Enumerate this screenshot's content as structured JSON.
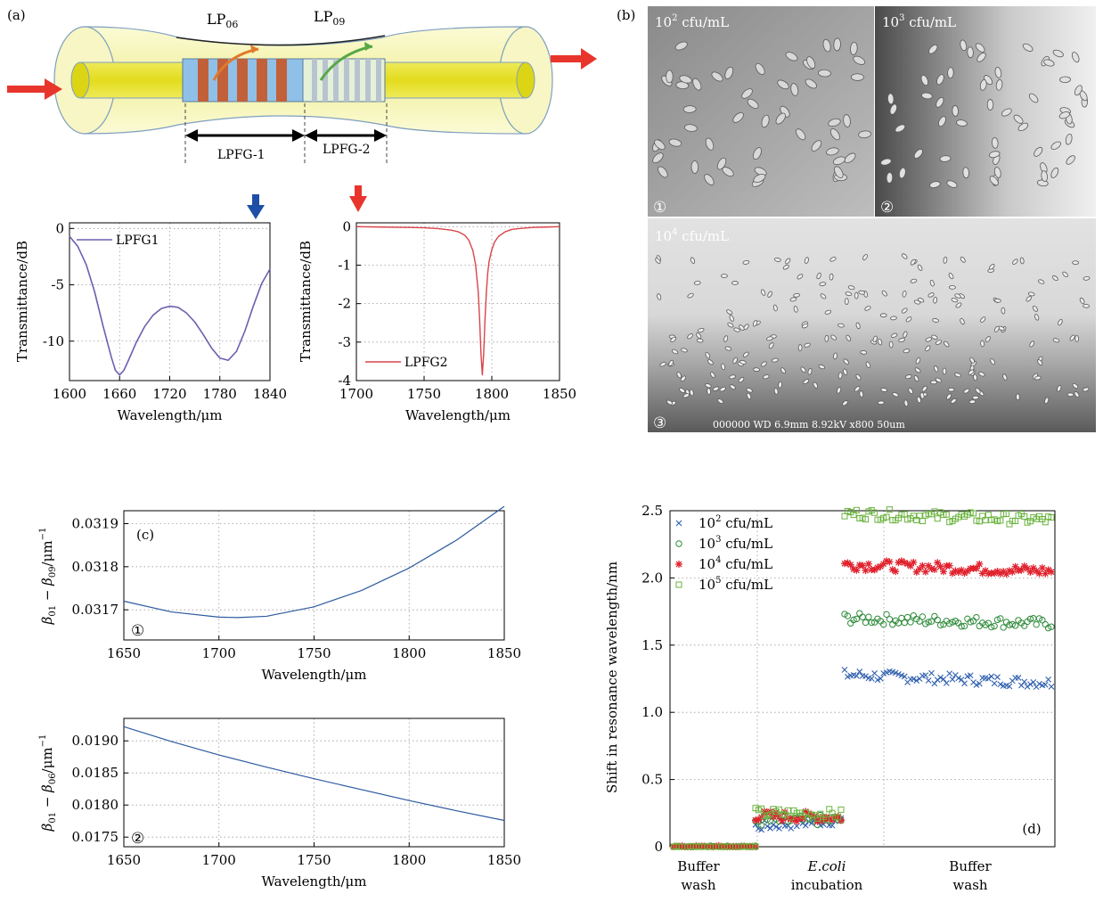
{
  "panels": {
    "a": {
      "label": "(a)",
      "mode1": "LP",
      "mode1_sub": "06",
      "mode2": "LP",
      "mode2_sub": "09",
      "grating1": "LPFG-1",
      "grating2": "LPFG-2",
      "colors": {
        "fiber": "#f4f3a6",
        "core": "#e9e020",
        "grating_blue": "#8fc0e8",
        "grating_brown": "#c2603a",
        "arrow_red": "#e8352c",
        "arrow_blue": "#1d4fa6"
      }
    },
    "b": {
      "label": "(b)",
      "images": [
        {
          "conc_base": "10",
          "conc_exp": "2",
          "unit": " cfu/mL",
          "marker": "①"
        },
        {
          "conc_base": "10",
          "conc_exp": "3",
          "unit": " cfu/mL",
          "marker": "②"
        },
        {
          "conc_base": "10",
          "conc_exp": "4",
          "unit": " cfu/mL",
          "marker": "③"
        }
      ],
      "sem_info": "000000 WD 6.9mm 8.92kV x800 50um"
    }
  },
  "chart_data": [
    {
      "id": "a-left",
      "type": "line",
      "xlabel": "Wavelength/μm",
      "ylabel": "Transmittance/dB",
      "xlim": [
        1600,
        1840
      ],
      "ylim": [
        -13.5,
        0.5
      ],
      "xticks": [
        1600,
        1660,
        1720,
        1780,
        1840
      ],
      "yticks": [
        0,
        -5,
        -10
      ],
      "grid": true,
      "legend": "top-left",
      "series": [
        {
          "name": "LPFG1",
          "color": "#6b5fb0",
          "x": [
            1600,
            1610,
            1620,
            1630,
            1640,
            1650,
            1655,
            1660,
            1665,
            1670,
            1680,
            1690,
            1700,
            1710,
            1720,
            1730,
            1740,
            1750,
            1760,
            1770,
            1780,
            1790,
            1800,
            1810,
            1820,
            1830,
            1840
          ],
          "y": [
            -0.7,
            -1.6,
            -3.2,
            -5.6,
            -8.6,
            -11.4,
            -12.6,
            -13.0,
            -12.6,
            -11.8,
            -10.1,
            -8.7,
            -7.7,
            -7.1,
            -6.9,
            -7.0,
            -7.5,
            -8.3,
            -9.4,
            -10.6,
            -11.5,
            -11.7,
            -10.9,
            -9.1,
            -6.9,
            -4.9,
            -3.6
          ]
        }
      ]
    },
    {
      "id": "a-right",
      "type": "line",
      "xlabel": "Wavelength/μm",
      "ylabel": "Transmittance/dB",
      "xlim": [
        1700,
        1850
      ],
      "ylim": [
        -4,
        0.1
      ],
      "xticks": [
        1700,
        1750,
        1800,
        1850
      ],
      "yticks": [
        0,
        -1,
        -2,
        -3,
        -4
      ],
      "grid": true,
      "legend": "bottom-left",
      "series": [
        {
          "name": "LPFG2",
          "color": "#d9454a",
          "x": [
            1700,
            1720,
            1740,
            1750,
            1760,
            1770,
            1775,
            1780,
            1783,
            1786,
            1788,
            1790,
            1791,
            1792,
            1793,
            1794,
            1795,
            1796,
            1797,
            1798,
            1800,
            1802,
            1805,
            1810,
            1815,
            1820,
            1830,
            1840,
            1850
          ],
          "y": [
            0,
            -0.01,
            -0.02,
            -0.03,
            -0.05,
            -0.09,
            -0.13,
            -0.22,
            -0.35,
            -0.62,
            -0.98,
            -1.7,
            -2.4,
            -3.3,
            -3.85,
            -3.3,
            -2.4,
            -1.7,
            -1.2,
            -0.9,
            -0.6,
            -0.4,
            -0.25,
            -0.13,
            -0.07,
            -0.05,
            -0.02,
            -0.01,
            0
          ]
        }
      ]
    },
    {
      "id": "c-top",
      "type": "line",
      "panel_label": "(c)",
      "marker": "①",
      "xlabel": "Wavelength/μm",
      "ylabel_a": "β",
      "ylabel_a_sub": "01",
      "ylabel_mid": " − β",
      "ylabel_b_sub": "09",
      "ylabel_unit": "/μm",
      "ylabel_exp": "−1",
      "xlim": [
        1650,
        1850
      ],
      "ylim": [
        0.03163,
        0.03193
      ],
      "xticks": [
        1650,
        1700,
        1750,
        1800,
        1850
      ],
      "yticks": [
        0.0317,
        0.0318,
        0.0319
      ],
      "ytick_labels": [
        "0.0317",
        "0.0318",
        "0.0319"
      ],
      "grid": true,
      "series": [
        {
          "name": "",
          "color": "#2c5aa0",
          "x": [
            1650,
            1675,
            1700,
            1710,
            1725,
            1750,
            1775,
            1800,
            1825,
            1850
          ],
          "y": [
            0.03172,
            0.031695,
            0.031683,
            0.031682,
            0.031685,
            0.031707,
            0.031745,
            0.031797,
            0.031862,
            0.03194
          ]
        }
      ]
    },
    {
      "id": "c-bottom",
      "type": "line",
      "marker": "②",
      "xlabel": "Wavelength/μm",
      "ylabel_a": "β",
      "ylabel_a_sub": "01",
      "ylabel_mid": " − β",
      "ylabel_b_sub": "06",
      "ylabel_unit": "/μm",
      "ylabel_exp": "−1",
      "xlim": [
        1650,
        1850
      ],
      "ylim": [
        0.01735,
        0.01935
      ],
      "xticks": [
        1650,
        1700,
        1750,
        1800,
        1850
      ],
      "yticks": [
        0.0175,
        0.018,
        0.0185,
        0.019
      ],
      "ytick_labels": [
        "0.0175",
        "0.0180",
        "0.0185",
        "0.0190"
      ],
      "grid": true,
      "series": [
        {
          "name": "",
          "color": "#2c5aa0",
          "x": [
            1650,
            1675,
            1700,
            1725,
            1750,
            1775,
            1800,
            1825,
            1850
          ],
          "y": [
            0.01922,
            0.01899,
            0.01878,
            0.01859,
            0.01841,
            0.01824,
            0.01807,
            0.01791,
            0.01776
          ]
        }
      ]
    },
    {
      "id": "d",
      "type": "scatter",
      "panel_label": "(d)",
      "ylabel": "Shift in resonance wavelength/nm",
      "ylim": [
        0,
        2.5
      ],
      "yticks": [
        0,
        0.5,
        1.0,
        1.5,
        2.0,
        2.5
      ],
      "ytick_labels": [
        "0",
        "0.5",
        "1.0",
        "1.5",
        "2.0",
        "2.5"
      ],
      "categories": [
        {
          "line1": "Buffer",
          "line2": "wash",
          "italic": false
        },
        {
          "line1": "E.coli",
          "line2": "incubation",
          "italic": true
        },
        {
          "line1": "Buffer",
          "line2": "wash",
          "italic": false
        }
      ],
      "grid": true,
      "legend": "top-left",
      "series": [
        {
          "name_base": "10",
          "name_exp": "2",
          "name_unit": " cfu/mL",
          "marker": "x",
          "color": "#2e5fae",
          "phases": [
            [
              0.0,
              0.0
            ],
            [
              0.15,
              0.2
            ],
            [
              1.28,
              1.22
            ]
          ]
        },
        {
          "name_base": "10",
          "name_exp": "3",
          "name_unit": " cfu/mL",
          "marker": "o",
          "color": "#2e8b3a",
          "phases": [
            [
              0.0,
              0.0
            ],
            [
              0.19,
              0.2
            ],
            [
              1.7,
              1.66
            ]
          ]
        },
        {
          "name_base": "10",
          "name_exp": "4",
          "name_unit": " cfu/mL",
          "marker": "*",
          "color": "#e0232e",
          "phases": [
            [
              0.0,
              0.0
            ],
            [
              0.23,
              0.22
            ],
            [
              2.1,
              2.05
            ]
          ]
        },
        {
          "name_base": "10",
          "name_exp": "5",
          "name_unit": " cfu/mL",
          "marker": "s",
          "color": "#6ab33e",
          "phases": [
            [
              0.0,
              0.0
            ],
            [
              0.25,
              0.24
            ],
            [
              2.48,
              2.43
            ]
          ]
        }
      ]
    }
  ]
}
